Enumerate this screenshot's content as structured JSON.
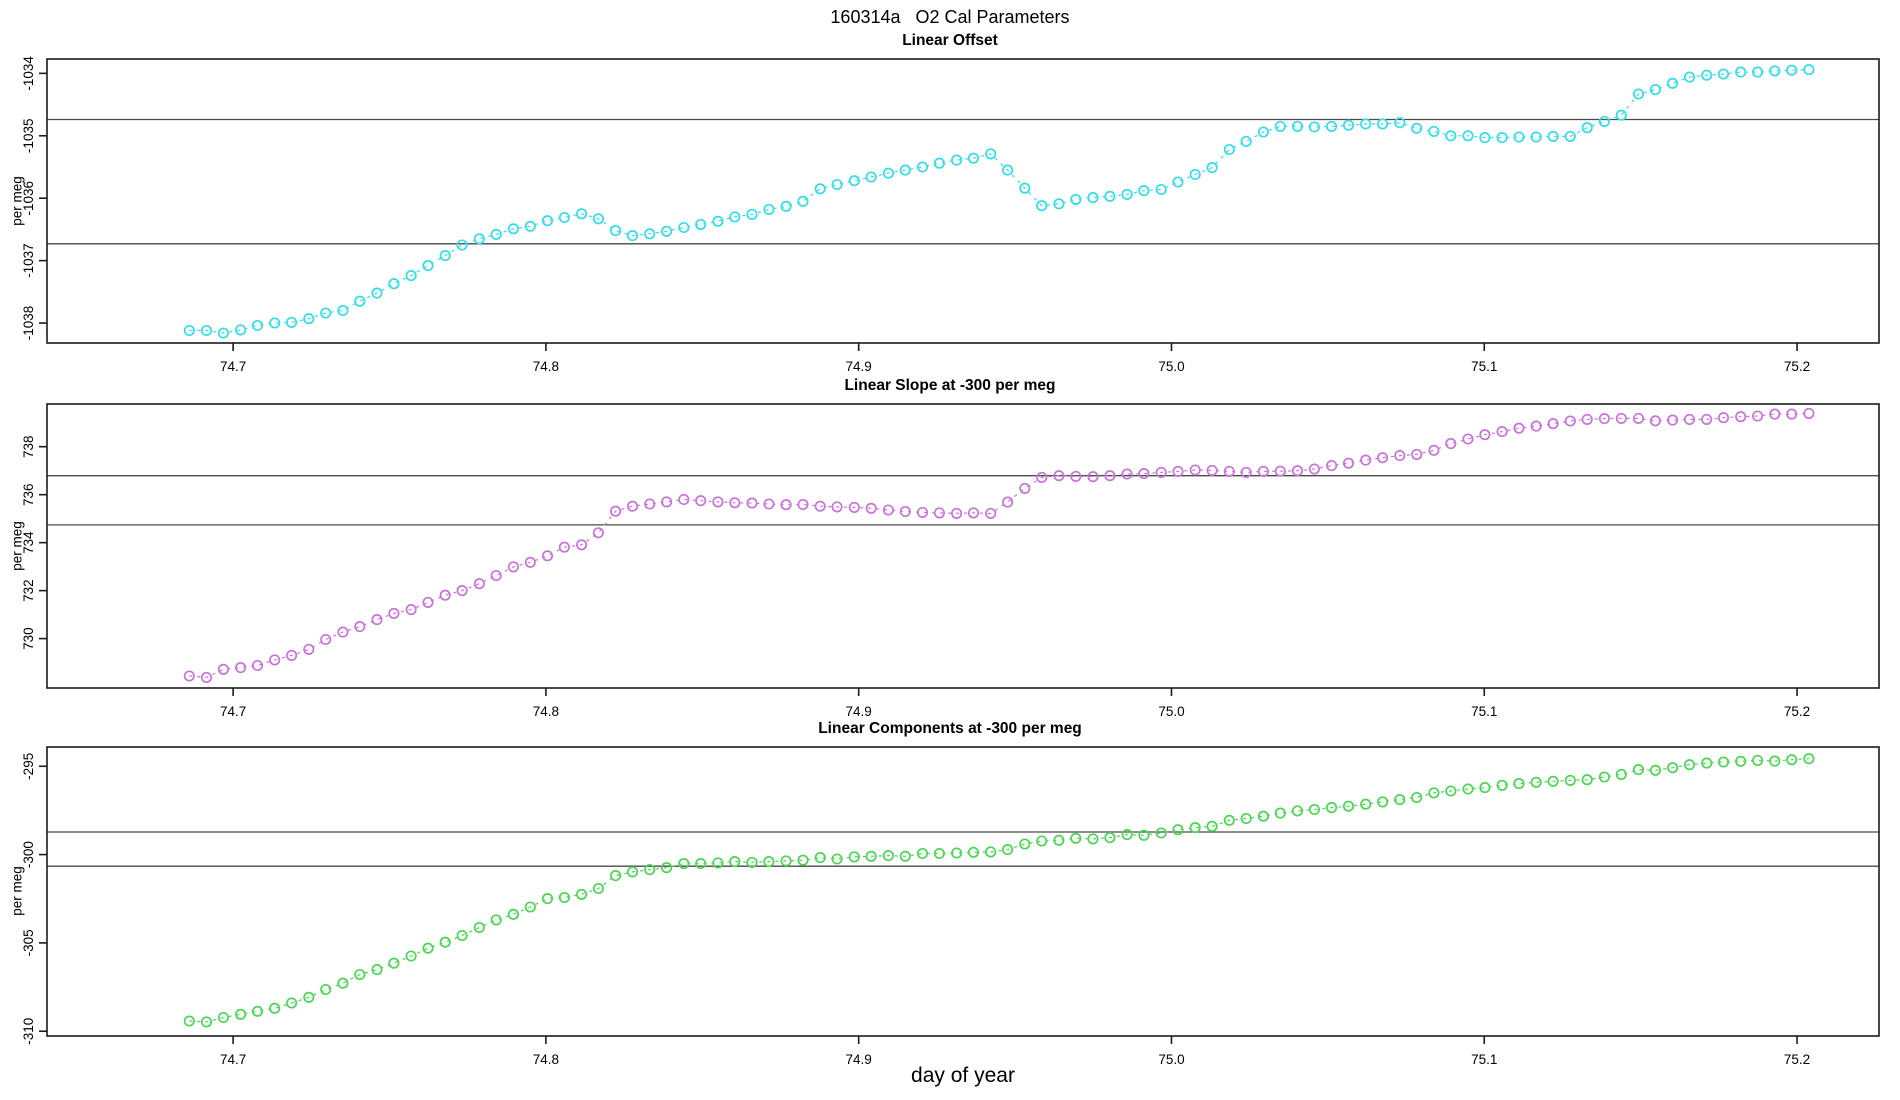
{
  "header": {
    "title": "160314a   O2 Cal Parameters"
  },
  "axis": {
    "xlabel": "day of year"
  },
  "chart_data": [
    {
      "type": "scatter",
      "title": "Linear Offset",
      "ylabel": "per meg",
      "marker": "open-circle",
      "line_style": "dashed",
      "color": "#2edfe8",
      "xlim": [
        74.6405,
        75.2262
      ],
      "ylim": [
        -1038.32,
        -1033.77
      ],
      "xticks": [
        74.7,
        74.8,
        74.9,
        75.0,
        75.1,
        75.2
      ],
      "xtick_labels": [
        "74.7",
        "74.8",
        "74.9",
        "75.0",
        "75.1",
        "75.2"
      ],
      "yticks": [
        -1038,
        -1037,
        -1036,
        -1035,
        -1034
      ],
      "ytick_labels": [
        "-1038",
        "-1037",
        "-1036",
        "-1035",
        "-1034"
      ],
      "ref_lines": [
        -1034.74,
        -1036.73
      ],
      "x": [
        74.686,
        74.6915,
        74.6969,
        74.7024,
        74.7078,
        74.7133,
        74.7187,
        74.7242,
        74.7296,
        74.7351,
        74.7405,
        74.746,
        74.7514,
        74.7569,
        74.7623,
        74.7678,
        74.7732,
        74.7787,
        74.7841,
        74.7896,
        74.795,
        74.8005,
        74.8059,
        74.8114,
        74.8168,
        74.8223,
        74.8277,
        74.8332,
        74.8386,
        74.8441,
        74.8495,
        74.855,
        74.8604,
        74.8659,
        74.8713,
        74.8768,
        74.8822,
        74.8877,
        74.8931,
        74.8986,
        74.904,
        74.9095,
        74.9149,
        74.9204,
        74.9258,
        74.9313,
        74.9367,
        74.9422,
        74.9476,
        74.9531,
        74.9585,
        74.964,
        74.9694,
        74.9749,
        74.9803,
        74.9858,
        74.9912,
        74.9967,
        75.0021,
        75.0076,
        75.013,
        75.0185,
        75.0239,
        75.0294,
        75.0348,
        75.0403,
        75.0457,
        75.0512,
        75.0566,
        75.0621,
        75.0675,
        75.073,
        75.0784,
        75.0839,
        75.0893,
        75.0948,
        75.1002,
        75.1057,
        75.1111,
        75.1166,
        75.122,
        75.1275,
        75.1329,
        75.1384,
        75.1438,
        75.1493,
        75.1547,
        75.1602,
        75.1656,
        75.1711,
        75.1765,
        75.182,
        75.1874,
        75.1929,
        75.1983,
        75.2038
      ],
      "y": [
        -1038.12,
        -1038.12,
        -1038.16,
        -1038.11,
        -1038.04,
        -1038.0,
        -1037.99,
        -1037.93,
        -1037.84,
        -1037.8,
        -1037.65,
        -1037.52,
        -1037.37,
        -1037.24,
        -1037.08,
        -1036.92,
        -1036.75,
        -1036.65,
        -1036.58,
        -1036.49,
        -1036.45,
        -1036.36,
        -1036.31,
        -1036.25,
        -1036.33,
        -1036.52,
        -1036.6,
        -1036.57,
        -1036.53,
        -1036.47,
        -1036.42,
        -1036.37,
        -1036.3,
        -1036.26,
        -1036.18,
        -1036.13,
        -1036.05,
        -1035.85,
        -1035.78,
        -1035.72,
        -1035.66,
        -1035.6,
        -1035.55,
        -1035.5,
        -1035.44,
        -1035.39,
        -1035.36,
        -1035.29,
        -1035.55,
        -1035.84,
        -1036.12,
        -1036.09,
        -1036.02,
        -1035.99,
        -1035.97,
        -1035.94,
        -1035.88,
        -1035.86,
        -1035.74,
        -1035.62,
        -1035.51,
        -1035.22,
        -1035.09,
        -1034.94,
        -1034.85,
        -1034.85,
        -1034.86,
        -1034.85,
        -1034.83,
        -1034.81,
        -1034.81,
        -1034.79,
        -1034.88,
        -1034.93,
        -1035.0,
        -1035.0,
        -1035.03,
        -1035.03,
        -1035.02,
        -1035.02,
        -1035.01,
        -1035.01,
        -1034.87,
        -1034.77,
        -1034.67,
        -1034.33,
        -1034.26,
        -1034.16,
        -1034.06,
        -1034.03,
        -1034.01,
        -1033.98,
        -1033.98,
        -1033.96,
        -1033.95,
        -1033.94
      ]
    },
    {
      "type": "scatter",
      "title": "Linear Slope at -300 per meg",
      "ylabel": "per meg",
      "marker": "open-circle",
      "line_style": "dashed",
      "color": "#c873da",
      "xlim": [
        74.6405,
        75.2262
      ],
      "ylim": [
        727.94,
        739.78
      ],
      "xticks": [
        74.7,
        74.8,
        74.9,
        75.0,
        75.1,
        75.2
      ],
      "xtick_labels": [
        "74.7",
        "74.8",
        "74.9",
        "75.0",
        "75.1",
        "75.2"
      ],
      "yticks": [
        730,
        732,
        734,
        736,
        738
      ],
      "ytick_labels": [
        "730",
        "732",
        "734",
        "736",
        "738"
      ],
      "ref_lines": [
        736.79,
        734.74
      ],
      "x": [
        74.686,
        74.6915,
        74.6969,
        74.7024,
        74.7078,
        74.7133,
        74.7187,
        74.7242,
        74.7296,
        74.7351,
        74.7405,
        74.746,
        74.7514,
        74.7569,
        74.7623,
        74.7678,
        74.7732,
        74.7787,
        74.7841,
        74.7896,
        74.795,
        74.8005,
        74.8059,
        74.8114,
        74.8168,
        74.8223,
        74.8277,
        74.8332,
        74.8386,
        74.8441,
        74.8495,
        74.855,
        74.8604,
        74.8659,
        74.8713,
        74.8768,
        74.8822,
        74.8877,
        74.8931,
        74.8986,
        74.904,
        74.9095,
        74.9149,
        74.9204,
        74.9258,
        74.9313,
        74.9367,
        74.9422,
        74.9476,
        74.9531,
        74.9585,
        74.964,
        74.9694,
        74.9749,
        74.9803,
        74.9858,
        74.9912,
        74.9967,
        75.0021,
        75.0076,
        75.013,
        75.0185,
        75.0239,
        75.0294,
        75.0348,
        75.0403,
        75.0457,
        75.0512,
        75.0566,
        75.0621,
        75.0675,
        75.073,
        75.0784,
        75.0839,
        75.0893,
        75.0948,
        75.1002,
        75.1057,
        75.1111,
        75.1166,
        75.122,
        75.1275,
        75.1329,
        75.1384,
        75.1438,
        75.1493,
        75.1547,
        75.1602,
        75.1656,
        75.1711,
        75.1765,
        75.182,
        75.1874,
        75.1929,
        75.1983,
        75.2038
      ],
      "y": [
        728.44,
        728.38,
        728.72,
        728.79,
        728.88,
        729.11,
        729.3,
        729.55,
        729.96,
        730.27,
        730.5,
        730.79,
        731.05,
        731.21,
        731.51,
        731.81,
        732.0,
        732.29,
        732.63,
        732.99,
        733.18,
        733.45,
        733.81,
        733.91,
        734.41,
        735.31,
        735.52,
        735.61,
        735.7,
        735.8,
        735.75,
        735.7,
        735.66,
        735.65,
        735.61,
        735.58,
        735.59,
        735.52,
        735.49,
        735.47,
        735.43,
        735.36,
        735.3,
        735.26,
        735.24,
        735.22,
        735.24,
        735.22,
        735.69,
        736.26,
        736.72,
        736.79,
        736.76,
        736.75,
        736.79,
        736.86,
        736.88,
        736.93,
        736.97,
        737.03,
        737.01,
        736.97,
        736.93,
        736.97,
        736.98,
        737.0,
        737.07,
        737.21,
        737.31,
        737.44,
        737.54,
        737.63,
        737.68,
        737.85,
        738.13,
        738.32,
        738.5,
        738.63,
        738.77,
        738.86,
        738.96,
        739.07,
        739.14,
        739.17,
        739.18,
        739.18,
        739.08,
        739.11,
        739.14,
        739.14,
        739.21,
        739.25,
        739.28,
        739.36,
        739.36,
        739.39
      ]
    },
    {
      "type": "scatter",
      "title": "Linear Components at -300 per meg",
      "ylabel": "per meg",
      "marker": "open-circle",
      "line_style": "dashed",
      "color": "#47d850",
      "xlim": [
        74.6405,
        75.2262
      ],
      "ylim": [
        -310.27,
        -293.91
      ],
      "xticks": [
        74.7,
        74.8,
        74.9,
        75.0,
        75.1,
        75.2
      ],
      "xtick_labels": [
        "74.7",
        "74.8",
        "74.9",
        "75.0",
        "75.1",
        "75.2"
      ],
      "yticks": [
        -310,
        -305,
        -300,
        -295
      ],
      "ytick_labels": [
        "-310",
        "-305",
        "-300",
        "-295"
      ],
      "ref_lines": [
        -298.72,
        -300.66
      ],
      "x": [
        74.686,
        74.6915,
        74.6969,
        74.7024,
        74.7078,
        74.7133,
        74.7187,
        74.7242,
        74.7296,
        74.7351,
        74.7405,
        74.746,
        74.7514,
        74.7569,
        74.7623,
        74.7678,
        74.7732,
        74.7787,
        74.7841,
        74.7896,
        74.795,
        74.8005,
        74.8059,
        74.8114,
        74.8168,
        74.8223,
        74.8277,
        74.8332,
        74.8386,
        74.8441,
        74.8495,
        74.855,
        74.8604,
        74.8659,
        74.8713,
        74.8768,
        74.8822,
        74.8877,
        74.8931,
        74.8986,
        74.904,
        74.9095,
        74.9149,
        74.9204,
        74.9258,
        74.9313,
        74.9367,
        74.9422,
        74.9476,
        74.9531,
        74.9585,
        74.964,
        74.9694,
        74.9749,
        74.9803,
        74.9858,
        74.9912,
        74.9967,
        75.0021,
        75.0076,
        75.013,
        75.0185,
        75.0239,
        75.0294,
        75.0348,
        75.0403,
        75.0457,
        75.0512,
        75.0566,
        75.0621,
        75.0675,
        75.073,
        75.0784,
        75.0839,
        75.0893,
        75.0948,
        75.1002,
        75.1057,
        75.1111,
        75.1166,
        75.122,
        75.1275,
        75.1329,
        75.1384,
        75.1438,
        75.1493,
        75.1547,
        75.1602,
        75.1656,
        75.1711,
        75.1765,
        75.182,
        75.1874,
        75.1929,
        75.1983,
        75.2038
      ],
      "y": [
        -309.42,
        -309.47,
        -309.22,
        -309.04,
        -308.87,
        -308.7,
        -308.4,
        -308.08,
        -307.64,
        -307.28,
        -306.79,
        -306.51,
        -306.15,
        -305.74,
        -305.3,
        -304.96,
        -304.58,
        -304.13,
        -303.7,
        -303.38,
        -302.97,
        -302.49,
        -302.43,
        -302.25,
        -301.92,
        -301.19,
        -300.98,
        -300.85,
        -300.74,
        -300.51,
        -300.51,
        -300.47,
        -300.4,
        -300.44,
        -300.4,
        -300.36,
        -300.32,
        -300.17,
        -300.25,
        -300.13,
        -300.1,
        -300.06,
        -300.1,
        -299.94,
        -299.94,
        -299.91,
        -299.87,
        -299.85,
        -299.72,
        -299.4,
        -299.23,
        -299.19,
        -299.08,
        -299.11,
        -299.04,
        -298.87,
        -298.91,
        -298.78,
        -298.59,
        -298.47,
        -298.4,
        -298.06,
        -297.96,
        -297.83,
        -297.65,
        -297.53,
        -297.45,
        -297.34,
        -297.26,
        -297.15,
        -297.02,
        -296.89,
        -296.77,
        -296.51,
        -296.4,
        -296.29,
        -296.21,
        -296.08,
        -295.98,
        -295.91,
        -295.85,
        -295.8,
        -295.76,
        -295.61,
        -295.46,
        -295.19,
        -295.23,
        -295.08,
        -294.91,
        -294.82,
        -294.76,
        -294.72,
        -294.67,
        -294.71,
        -294.63,
        -294.57
      ]
    }
  ]
}
